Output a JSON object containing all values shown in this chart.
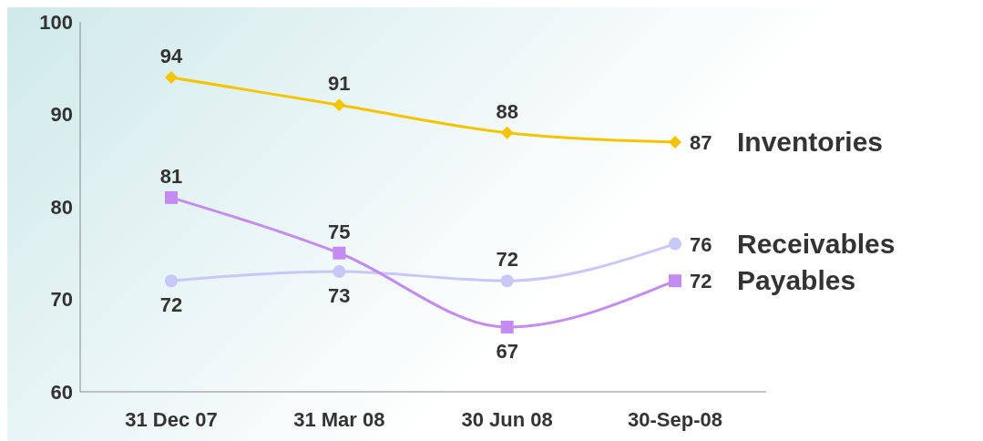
{
  "chart_data": {
    "type": "line",
    "categories": [
      "31 Dec 07",
      "31 Mar 08",
      "30 Jun 08",
      "30-Sep-08"
    ],
    "series": [
      {
        "name": "Inventories",
        "color": "#f5c400",
        "marker": "diamond",
        "values": [
          94,
          91,
          88,
          87
        ]
      },
      {
        "name": "Receivables",
        "color": "#c8c8f8",
        "marker": "circle",
        "values": [
          72,
          73,
          72,
          76
        ]
      },
      {
        "name": "Payables",
        "color": "#c48cf0",
        "marker": "square",
        "values": [
          81,
          75,
          67,
          72
        ]
      }
    ],
    "ylim": [
      60,
      100
    ],
    "yticks": [
      60,
      70,
      80,
      90,
      100
    ],
    "data_labels": true
  }
}
